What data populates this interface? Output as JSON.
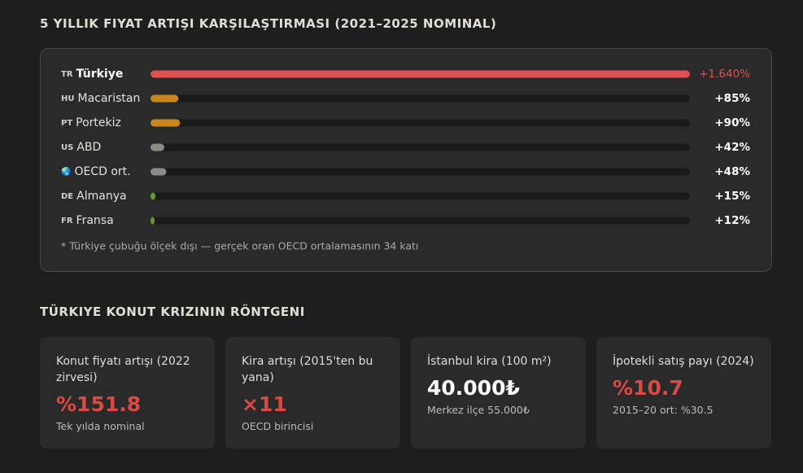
{
  "chart_data": {
    "type": "bar",
    "orientation": "horizontal",
    "title": "5 YILLIK FIYAT ARTIŞI KARŞILAŞTIRMASI (2021–2025 NOMINAL)",
    "codes": [
      "TR",
      "HU",
      "PT",
      "US",
      "🌏",
      "DE",
      "FR"
    ],
    "categories": [
      "Türkiye",
      "Macaristan",
      "Portekiz",
      "ABD",
      "OECD ort.",
      "Almanya",
      "Fransa"
    ],
    "values": [
      1640,
      85,
      90,
      42,
      48,
      15,
      12
    ],
    "value_labels": [
      "+1.640%",
      "+85%",
      "+90%",
      "+42%",
      "+48%",
      "+15%",
      "+12%"
    ],
    "colors": [
      "#e05050",
      "#c8861c",
      "#c8861c",
      "#8c8b86",
      "#8c8b86",
      "#5c9e2c",
      "#5c9e2c"
    ],
    "xlim": [
      0,
      1640
    ],
    "note": "* Türkiye çubuğu ölçek dışı — gerçek oran OECD ortalamasının 34 katı"
  },
  "section": {
    "title": "TÜRKIYE KONUT KRIZININ RÖNTGENI",
    "cards": [
      {
        "label": "Konut fiyatı artışı (2022 zirvesi)",
        "value": "%151.8",
        "sub": "Tek yılda nominal",
        "color": "#d94a45"
      },
      {
        "label": "Kira artışı (2015'ten bu yana)",
        "value": "×11",
        "sub": "OECD birincisi",
        "color": "#d94a45"
      },
      {
        "label": "İstanbul kira (100 m²)",
        "value": "40.000₺",
        "sub": "Merkez ilçe 55.000₺",
        "color": "#ffffff"
      },
      {
        "label": "İpotekli satış payı (2024)",
        "value": "%10.7",
        "sub": "2015–20 ort: %30.5",
        "color": "#d94a45"
      }
    ]
  }
}
